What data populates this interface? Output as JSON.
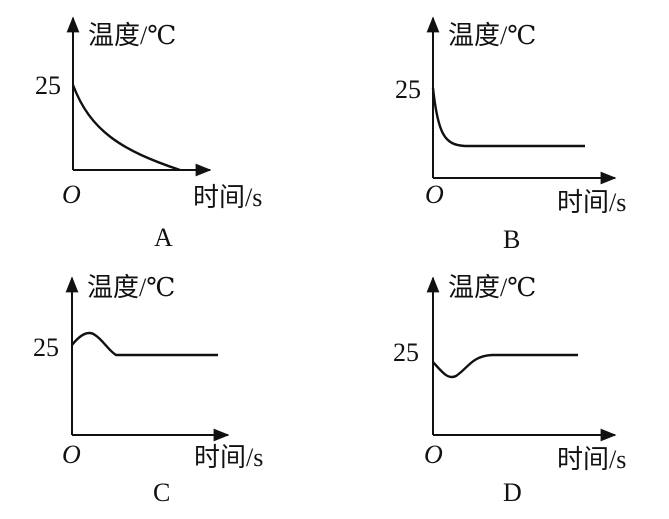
{
  "panels": [
    {
      "caption": "A",
      "y_label": "温度/℃",
      "x_label": "时间/s",
      "origin": "O",
      "y_tick": "25"
    },
    {
      "caption": "B",
      "y_label": "温度/℃",
      "x_label": "时间/s",
      "origin": "O",
      "y_tick": "25"
    },
    {
      "caption": "C",
      "y_label": "温度/℃",
      "x_label": "时间/s",
      "origin": "O",
      "y_tick": "25"
    },
    {
      "caption": "D",
      "y_label": "温度/℃",
      "x_label": "时间/s",
      "origin": "O",
      "y_tick": "25"
    }
  ]
}
